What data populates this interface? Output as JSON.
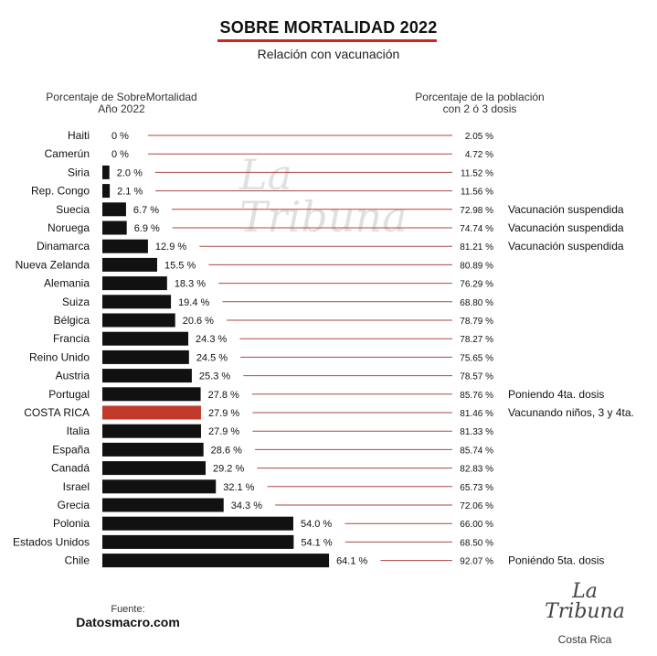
{
  "title": "SOBRE MORTALIDAD 2022",
  "subtitle": "Relación con vacunación",
  "header_left": "Porcentaje de SobreMortalidad\nAño 2022",
  "header_right": "Porcentaje de la población\ncon 2 ó 3 dosis",
  "watermark": "La Tribuna",
  "source": {
    "label": "Fuente:",
    "value": "Datosmacro.com"
  },
  "logo": {
    "line1": "La",
    "line2": "Tribuna",
    "sub": "Costa Rica"
  },
  "colors": {
    "bar": "#111111",
    "highlight": "#c0392b",
    "line": "#a84a44",
    "title_underline": "#d3231b"
  },
  "chart_data": {
    "type": "bar",
    "orientation": "horizontal",
    "title": "SOBRE MORTALIDAD 2022",
    "subtitle": "Relación con vacunación",
    "highlight_category": "COSTA RICA",
    "categories": [
      "Haiti",
      "Camerún",
      "Siria",
      "Rep. Congo",
      "Suecia",
      "Noruega",
      "Dinamarca",
      "Nueva Zelanda",
      "Alemania",
      "Suiza",
      "Bélgica",
      "Francia",
      "Reino Unido",
      "Austria",
      "Portugal",
      "COSTA RICA",
      "Italia",
      "España",
      "Canadá",
      "Israel",
      "Grecia",
      "Polonia",
      "Estados Unidos",
      "Chile"
    ],
    "series": [
      {
        "name": "Porcentaje de SobreMortalidad Año 2022",
        "values": [
          0,
          0,
          2.0,
          2.1,
          6.7,
          6.9,
          12.9,
          15.5,
          18.3,
          19.4,
          20.6,
          24.3,
          24.5,
          25.3,
          27.8,
          27.9,
          27.9,
          28.6,
          29.2,
          32.1,
          34.3,
          54.0,
          54.1,
          64.1
        ],
        "labels": [
          "0 %",
          "0 %",
          "2.0 %",
          "2.1 %",
          "6.7 %",
          "6.9 %",
          "12.9 %",
          "15.5 %",
          "18.3 %",
          "19.4 %",
          "20.6 %",
          "24.3 %",
          "24.5 %",
          "25.3 %",
          "27.8 %",
          "27.9 %",
          "27.9 %",
          "28.6 %",
          "29.2 %",
          "32.1 %",
          "34.3 %",
          "54.0 %",
          "54.1 %",
          "64.1 %"
        ]
      },
      {
        "name": "Porcentaje de la población con 2 ó 3 dosis",
        "values": [
          2.05,
          4.72,
          11.52,
          11.56,
          72.98,
          74.74,
          81.21,
          80.89,
          76.29,
          68.8,
          78.79,
          78.27,
          75.65,
          78.57,
          85.76,
          81.46,
          81.33,
          85.74,
          82.83,
          65.73,
          72.06,
          66.0,
          68.5,
          92.07
        ],
        "labels": [
          "2.05 %",
          "4.72 %",
          "11.52 %",
          "11.56 %",
          "72.98 %",
          "74.74 %",
          "81.21 %",
          "80.89 %",
          "76.29 %",
          "68.80 %",
          "78.79 %",
          "78.27 %",
          "75.65 %",
          "78.57 %",
          "85.76 %",
          "81.46 %",
          "81.33 %",
          "85.74 %",
          "82.83 %",
          "65.73 %",
          "72.06 %",
          "66.00 %",
          "68.50 %",
          "92.07 %"
        ]
      }
    ],
    "notes": [
      "",
      "",
      "",
      "",
      "Vacunación suspendida",
      "Vacunación suspendida",
      "Vacunación suspendida",
      "",
      "",
      "",
      "",
      "",
      "",
      "",
      "Poniendo 4ta. dosis",
      "Vacunando niños, 3 y 4ta.",
      "",
      "",
      "",
      "",
      "",
      "",
      "",
      "Poniéndo  5ta. dosis"
    ]
  }
}
